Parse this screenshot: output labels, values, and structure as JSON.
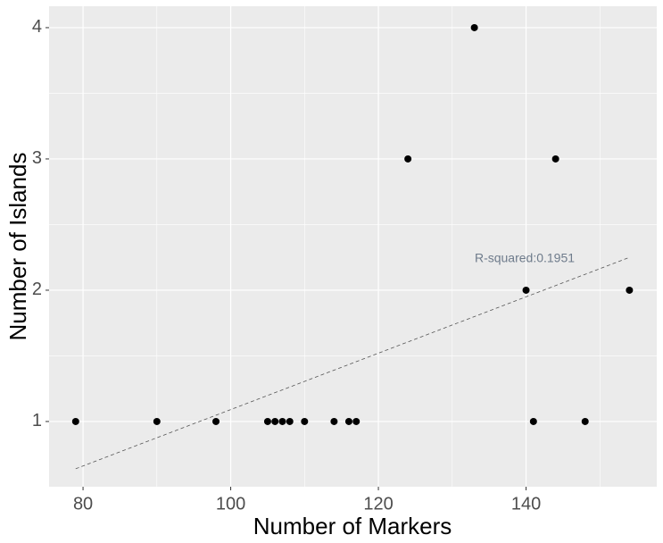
{
  "chart_data": {
    "type": "scatter",
    "x_label": "Number of Markers",
    "y_label": "Number of Islands",
    "x": [
      79,
      90,
      98,
      105,
      106,
      107,
      108,
      110,
      114,
      116,
      117,
      124,
      133,
      140,
      141,
      144,
      148,
      154
    ],
    "values": [
      1,
      1,
      1,
      1,
      1,
      1,
      1,
      1,
      1,
      1,
      1,
      3,
      4,
      2,
      1,
      3,
      1,
      2
    ],
    "color": "#000000",
    "trend_line": {
      "x": [
        79,
        154
      ],
      "y": [
        0.64,
        2.25
      ],
      "color": "#555555"
    },
    "annotation": "R-squared:0.1951",
    "xlim": [
      75.4,
      157.7
    ],
    "xticks": [
      80,
      100,
      120,
      140
    ],
    "ylim": [
      0.503,
      4.163
    ],
    "yticks": [
      1,
      2,
      3,
      4
    ],
    "grid": true
  }
}
